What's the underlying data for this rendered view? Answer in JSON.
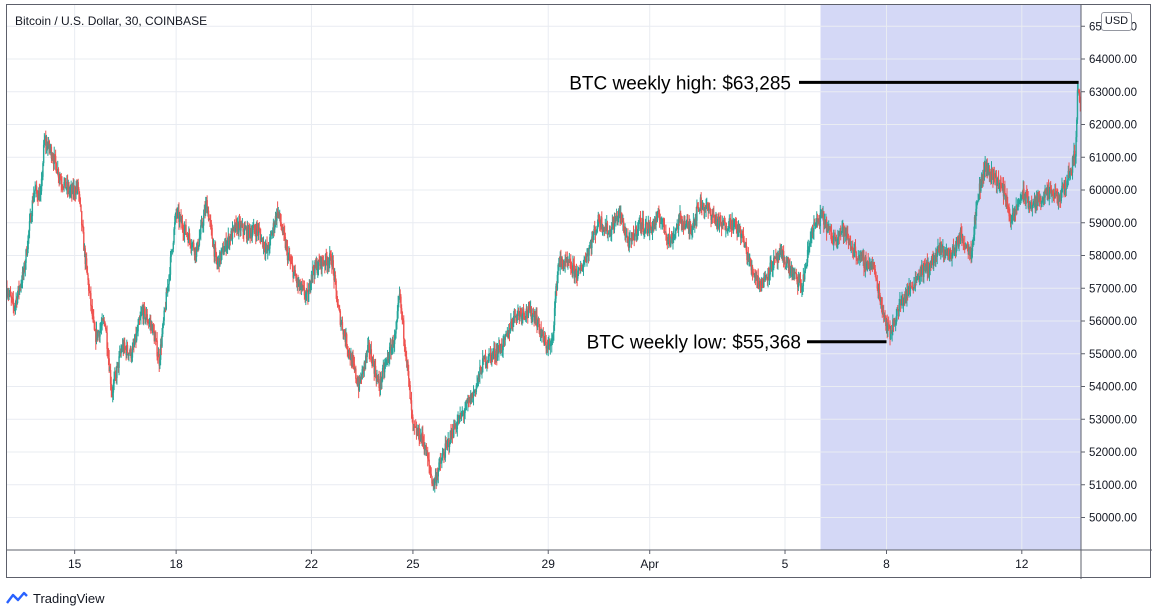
{
  "header": {
    "title": "Bitcoin / U.S. Dollar, 30, COINBASE",
    "currency_badge": "USD"
  },
  "footer": {
    "brand": "TradingView"
  },
  "colors": {
    "up": "#26a69a",
    "down": "#ef5350",
    "highlight": "#d4d8f6",
    "grid": "#e9ecf2",
    "annotation_line": "#000000"
  },
  "chart_data": {
    "type": "candlestick",
    "title": "Bitcoin / U.S. Dollar, 30, COINBASE",
    "ylabel": "USD",
    "ylim": [
      49000,
      65600
    ],
    "y_ticks": [
      "50000.00",
      "51000.00",
      "52000.00",
      "53000.00",
      "54000.00",
      "55000.00",
      "56000.00",
      "57000.00",
      "58000.00",
      "59000.00",
      "60000.00",
      "61000.00",
      "62000.00",
      "63000.00",
      "64000.00",
      "65000.00"
    ],
    "x_ticks": [
      {
        "label": "15",
        "day": 15
      },
      {
        "label": "18",
        "day": 18
      },
      {
        "label": "22",
        "day": 22
      },
      {
        "label": "25",
        "day": 25
      },
      {
        "label": "29",
        "day": 29
      },
      {
        "label": "Apr",
        "day": 32
      },
      {
        "label": "5",
        "day": 36
      },
      {
        "label": "8",
        "day": 39
      },
      {
        "label": "12",
        "day": 43
      }
    ],
    "x_range_days": [
      13.0,
      44.75
    ],
    "highlight_range_days": [
      37.05,
      44.75
    ],
    "price_path": [
      [
        13.0,
        57000
      ],
      [
        13.2,
        56400
      ],
      [
        13.5,
        57500
      ],
      [
        13.8,
        60000
      ],
      [
        14.0,
        59800
      ],
      [
        14.1,
        61500
      ],
      [
        14.3,
        61200
      ],
      [
        14.6,
        60300
      ],
      [
        14.9,
        59900
      ],
      [
        15.1,
        60100
      ],
      [
        15.3,
        58000
      ],
      [
        15.6,
        55500
      ],
      [
        15.9,
        56000
      ],
      [
        16.1,
        53800
      ],
      [
        16.4,
        55200
      ],
      [
        16.7,
        55000
      ],
      [
        17.0,
        56300
      ],
      [
        17.3,
        55800
      ],
      [
        17.5,
        54800
      ],
      [
        17.8,
        57500
      ],
      [
        18.0,
        59300
      ],
      [
        18.3,
        58700
      ],
      [
        18.6,
        58100
      ],
      [
        18.9,
        59600
      ],
      [
        19.2,
        57700
      ],
      [
        19.5,
        58400
      ],
      [
        19.8,
        58900
      ],
      [
        20.1,
        58700
      ],
      [
        20.4,
        58800
      ],
      [
        20.7,
        58100
      ],
      [
        21.0,
        59400
      ],
      [
        21.3,
        58000
      ],
      [
        21.6,
        57100
      ],
      [
        21.9,
        56700
      ],
      [
        22.0,
        57500
      ],
      [
        22.3,
        57800
      ],
      [
        22.6,
        57900
      ],
      [
        22.8,
        56300
      ],
      [
        23.1,
        55100
      ],
      [
        23.4,
        54000
      ],
      [
        23.7,
        55200
      ],
      [
        24.0,
        54000
      ],
      [
        24.2,
        54700
      ],
      [
        24.5,
        55600
      ],
      [
        24.6,
        56800
      ],
      [
        24.8,
        55000
      ],
      [
        25.0,
        52700
      ],
      [
        25.3,
        52400
      ],
      [
        25.6,
        51000
      ],
      [
        25.9,
        51900
      ],
      [
        26.2,
        52700
      ],
      [
        26.5,
        53200
      ],
      [
        26.8,
        53800
      ],
      [
        27.1,
        54800
      ],
      [
        27.4,
        55000
      ],
      [
        27.7,
        55300
      ],
      [
        28.0,
        56200
      ],
      [
        28.3,
        56300
      ],
      [
        28.6,
        56200
      ],
      [
        28.9,
        55300
      ],
      [
        29.1,
        55200
      ],
      [
        29.3,
        57800
      ],
      [
        29.6,
        57700
      ],
      [
        29.9,
        57400
      ],
      [
        30.2,
        58200
      ],
      [
        30.5,
        59100
      ],
      [
        30.8,
        58700
      ],
      [
        31.1,
        59300
      ],
      [
        31.4,
        58300
      ],
      [
        31.7,
        59000
      ],
      [
        32.0,
        58800
      ],
      [
        32.3,
        59200
      ],
      [
        32.6,
        58400
      ],
      [
        32.9,
        59100
      ],
      [
        33.2,
        58800
      ],
      [
        33.5,
        59600
      ],
      [
        33.8,
        59300
      ],
      [
        34.1,
        58900
      ],
      [
        34.4,
        59000
      ],
      [
        34.7,
        58700
      ],
      [
        35.0,
        57600
      ],
      [
        35.3,
        57100
      ],
      [
        35.6,
        57700
      ],
      [
        35.9,
        58000
      ],
      [
        36.2,
        57500
      ],
      [
        36.5,
        57000
      ],
      [
        36.8,
        58800
      ],
      [
        37.1,
        59200
      ],
      [
        37.4,
        58500
      ],
      [
        37.7,
        58800
      ],
      [
        38.0,
        58200
      ],
      [
        38.3,
        57800
      ],
      [
        38.6,
        57700
      ],
      [
        38.9,
        56300
      ],
      [
        39.1,
        55600
      ],
      [
        39.4,
        56500
      ],
      [
        39.7,
        57000
      ],
      [
        40.0,
        57500
      ],
      [
        40.3,
        57700
      ],
      [
        40.6,
        58200
      ],
      [
        40.9,
        58000
      ],
      [
        41.2,
        58600
      ],
      [
        41.5,
        58100
      ],
      [
        41.7,
        59800
      ],
      [
        41.9,
        60700
      ],
      [
        42.2,
        60400
      ],
      [
        42.5,
        59900
      ],
      [
        42.7,
        59000
      ],
      [
        43.0,
        59900
      ],
      [
        43.3,
        59500
      ],
      [
        43.6,
        59800
      ],
      [
        43.9,
        59900
      ],
      [
        44.1,
        59700
      ],
      [
        44.3,
        60200
      ],
      [
        44.5,
        60800
      ],
      [
        44.6,
        61300
      ],
      [
        44.65,
        63200
      ],
      [
        44.75,
        62500
      ]
    ],
    "annotations": [
      {
        "label": "BTC weekly high: $63,285",
        "value": 63285,
        "day": 44.68
      },
      {
        "label": "BTC weekly low: $55,368",
        "value": 55368,
        "day": 39.0
      }
    ]
  }
}
